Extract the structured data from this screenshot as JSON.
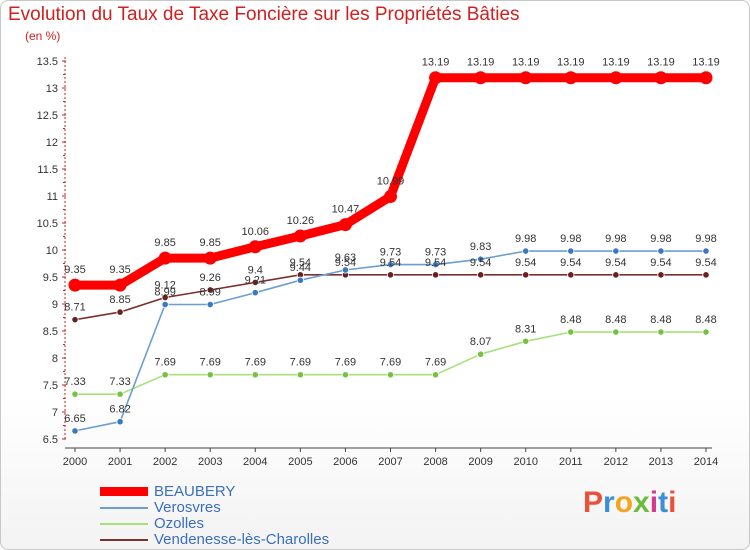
{
  "title": "Evolution du Taux de Taxe Foncière sur les Propriétés Bâties",
  "unit_label": "(en %)",
  "logo": {
    "text": "Proxiti",
    "colors": [
      "#e8523a",
      "#3a8fd8",
      "#f2a51f",
      "#6dbb3c",
      "#d43a8c",
      "#3a8fd8",
      "#e8523a"
    ]
  },
  "chart_data": {
    "type": "line",
    "title": "Evolution du Taux de Taxe Foncière sur les Propriétés Bâties",
    "ylabel": "(en %)",
    "xlabel": "",
    "x": [
      "2000",
      "2001",
      "2002",
      "2003",
      "2004",
      "2005",
      "2006",
      "2007",
      "2008",
      "2009",
      "2010",
      "2011",
      "2012",
      "2013",
      "2014"
    ],
    "ylim": [
      6.5,
      13.5
    ],
    "yticks": [
      "6.5",
      "7",
      "7.5",
      "8",
      "8.5",
      "9",
      "9.5",
      "10",
      "10.5",
      "11",
      "11.5",
      "12",
      "12.5",
      "13",
      "13.5"
    ],
    "grid": false,
    "legend_position": "bottom-left",
    "series": [
      {
        "name": "BEAUBERY",
        "color": "#ff0000",
        "values": [
          9.35,
          9.35,
          9.85,
          9.85,
          10.06,
          10.26,
          10.47,
          10.99,
          13.19,
          13.19,
          13.19,
          13.19,
          13.19,
          13.19,
          13.19
        ],
        "labels": [
          "9.35",
          "9.35",
          "9.85",
          "9.85",
          "10.06",
          "10.26",
          "10.47",
          "10.99",
          "13.19",
          "13.19",
          "13.19",
          "13.19",
          "13.19",
          "13.19",
          "13.19"
        ]
      },
      {
        "name": "Verosvres",
        "color": "#6a9fd0",
        "marker": "#3b78c0",
        "values": [
          6.65,
          6.82,
          8.99,
          8.99,
          9.21,
          9.44,
          9.63,
          9.73,
          9.73,
          9.83,
          9.98,
          9.98,
          9.98,
          9.98,
          9.98
        ],
        "labels": [
          "6.65",
          "6.82",
          "8.99",
          "8.99",
          "9.21",
          "9.44",
          "9.63",
          "9.73",
          "9.73",
          "9.83",
          "9.98",
          "9.98",
          "9.98",
          "9.98",
          "9.98"
        ]
      },
      {
        "name": "Ozolles",
        "color": "#a8e07a",
        "marker": "#78c040",
        "values": [
          7.33,
          7.33,
          7.69,
          7.69,
          7.69,
          7.69,
          7.69,
          7.69,
          7.69,
          8.07,
          8.31,
          8.48,
          8.48,
          8.48,
          8.48
        ],
        "labels": [
          "7.33",
          "7.33",
          "7.69",
          "7.69",
          "7.69",
          "7.69",
          "7.69",
          "7.69",
          "7.69",
          "8.07",
          "8.31",
          "8.48",
          "8.48",
          "8.48",
          "8.48"
        ]
      },
      {
        "name": "Vendenesse-lès-Charolles",
        "color": "#7a3030",
        "marker": "#6a2020",
        "values": [
          8.71,
          8.85,
          9.12,
          9.26,
          9.4,
          9.54,
          9.54,
          9.54,
          9.54,
          9.54,
          9.54,
          9.54,
          9.54,
          9.54,
          9.54
        ],
        "labels": [
          "8.71",
          "8.85",
          "9.12",
          "9.26",
          "9.4",
          "9.54",
          "9.54",
          "9.54",
          "9.54",
          "9.54",
          "9.54",
          "9.54",
          "9.54",
          "9.54",
          "9.54"
        ]
      }
    ]
  }
}
